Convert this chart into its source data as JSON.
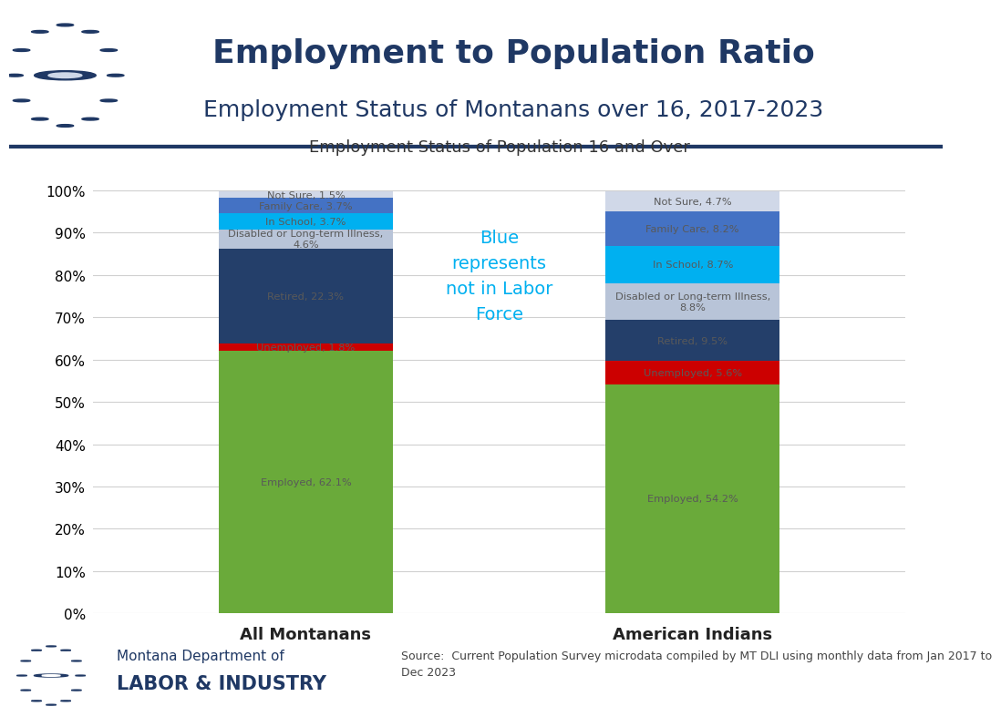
{
  "title_line1": "Employment to Population Ratio",
  "title_line2": "Employment Status of Montanans over 16, 2017-2023",
  "chart_title": "Employment Status of Population 16 and Over",
  "categories": [
    "All Montanans",
    "American Indians"
  ],
  "segments": [
    {
      "label": "Employed",
      "color": "#6aaa3a",
      "values": [
        62.1,
        54.2
      ]
    },
    {
      "label": "Unemployed",
      "color": "#cc0000",
      "values": [
        1.8,
        5.6
      ]
    },
    {
      "label": "Retired",
      "color": "#243f6a",
      "values": [
        22.3,
        9.5
      ]
    },
    {
      "label": "Disabled or Long-term Illness,",
      "color": "#b8c4d8",
      "values": [
        4.6,
        8.8
      ]
    },
    {
      "label": "In School",
      "color": "#00b0f0",
      "values": [
        3.7,
        8.7
      ]
    },
    {
      "label": "Family Care",
      "color": "#4472c4",
      "values": [
        3.7,
        8.2
      ]
    },
    {
      "label": "Not Sure",
      "color": "#d0d8e8",
      "values": [
        1.5,
        4.7
      ]
    }
  ],
  "label_values_all": {
    "Employed": "Employed, 62.1%",
    "Unemployed": "Unemployed, 1.8%",
    "Retired": "Retired, 22.3%",
    "Disabled or Long-term Illness,": "Disabled or Long-term Illness,\n4.6%",
    "In School": "In School, 3.7%",
    "Family Care": "Family Care, 3.7%",
    "Not Sure": "Not Sure, 1.5%"
  },
  "label_values_ai": {
    "Employed": "Employed, 54.2%",
    "Unemployed": "Unemployed, 5.6%",
    "Retired": "Retired, 9.5%",
    "Disabled or Long-term Illness,": "Disabled or Long-term Illness,\n8.8%",
    "In School": "In School, 8.7%",
    "Family Care": "Family Care, 8.2%",
    "Not Sure": "Not Sure, 4.7%"
  },
  "header_bg_color": "#ced8e8",
  "header_border_color": "#1f3864",
  "header_text_color": "#1f3864",
  "bg_color": "#ffffff",
  "annotation_text": "Blue\nrepresents\nnot in Labor\nForce",
  "annotation_color": "#00b0f0",
  "footer_source": "Source:  Current Population Survey microdata compiled by MT DLI using monthly data from Jan 2017 to\nDec 2023",
  "label_color": "#595959",
  "grid_color": "#d0d0d0"
}
